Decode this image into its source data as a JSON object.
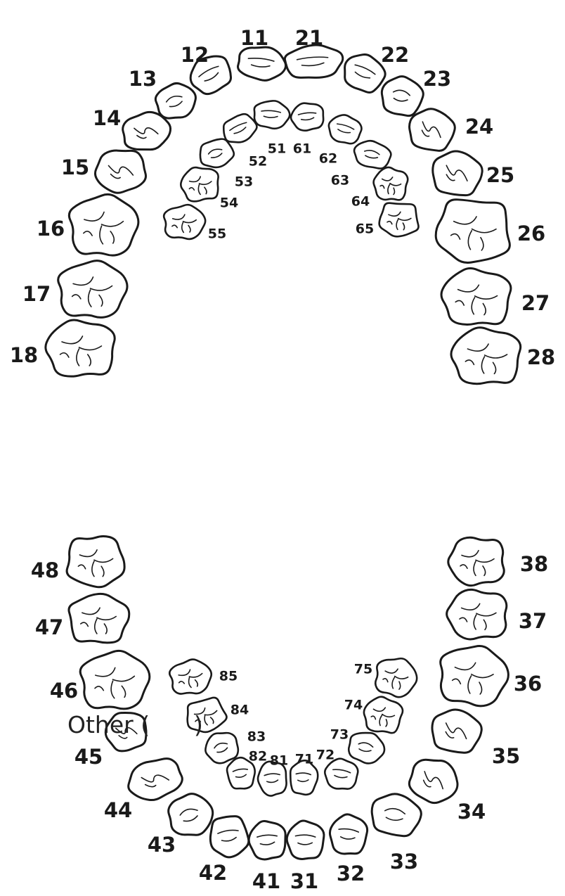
{
  "other_label": "Other (      )",
  "upper_permanent": [
    "11",
    "12",
    "13",
    "14",
    "15",
    "16",
    "17",
    "18",
    "21",
    "22",
    "23",
    "24",
    "25",
    "26",
    "27",
    "28"
  ],
  "upper_primary": [
    "51",
    "52",
    "53",
    "54",
    "55",
    "61",
    "62",
    "63",
    "64",
    "65"
  ],
  "lower_permanent": [
    "31",
    "32",
    "33",
    "34",
    "35",
    "36",
    "37",
    "38",
    "41",
    "42",
    "43",
    "44",
    "45",
    "46",
    "47",
    "48"
  ],
  "lower_primary": [
    "71",
    "72",
    "73",
    "74",
    "75",
    "81",
    "82",
    "83",
    "84",
    "85"
  ]
}
